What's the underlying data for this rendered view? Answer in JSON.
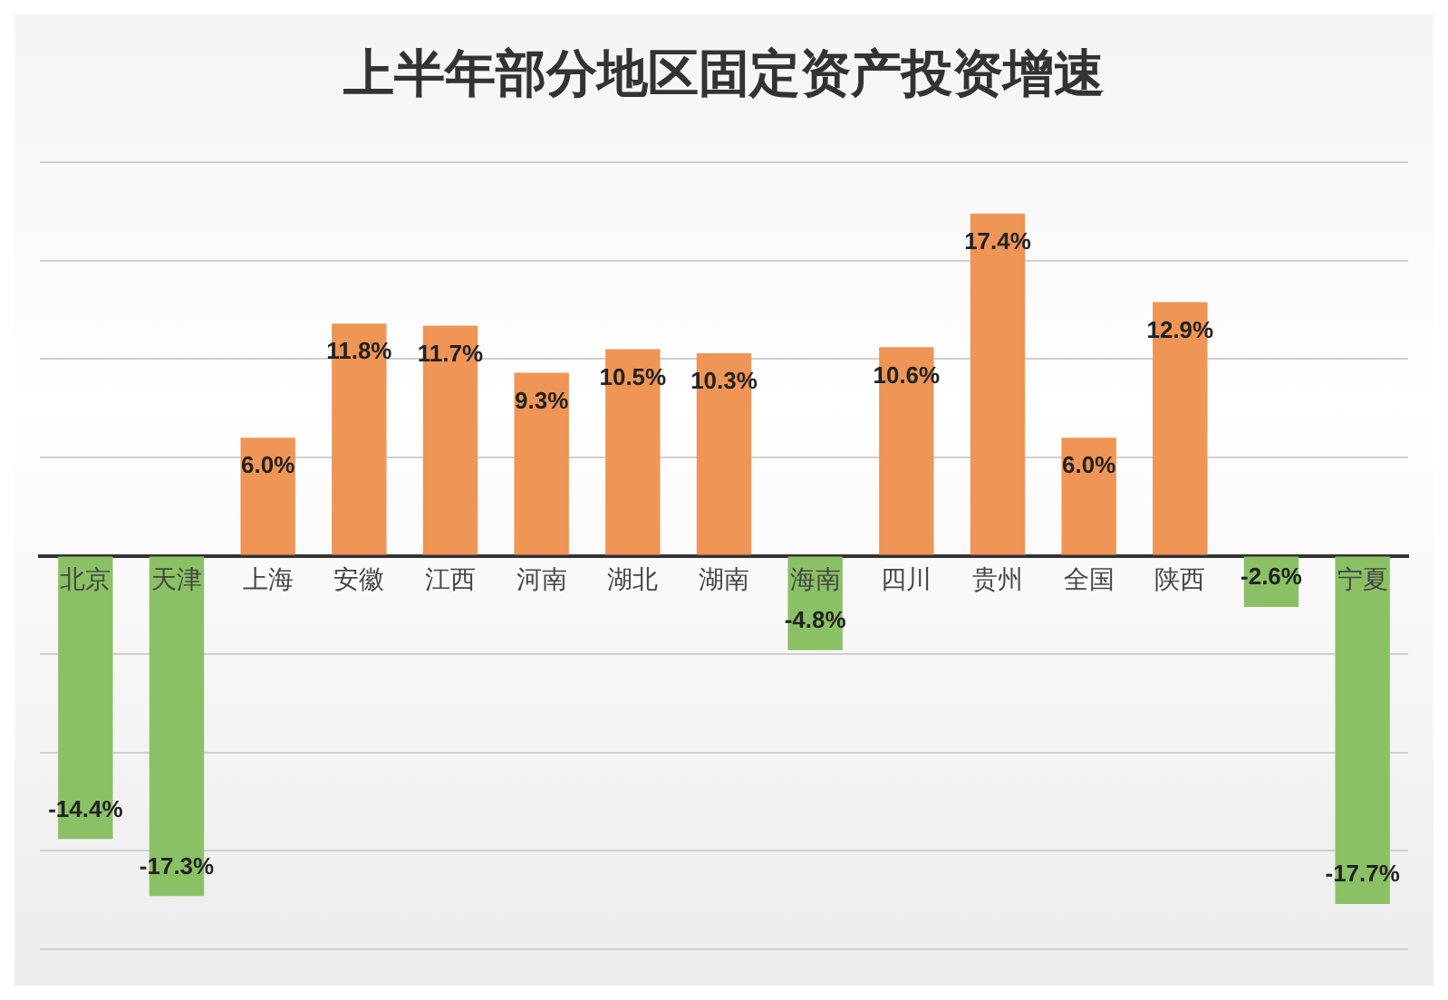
{
  "chart_data": {
    "type": "bar",
    "title": "上半年部分地区固定资产投资增速",
    "categories": [
      "北京",
      "天津",
      "上海",
      "安徽",
      "江西",
      "河南",
      "湖北",
      "湖南",
      "海南",
      "四川",
      "贵州",
      "全国",
      "陕西",
      null,
      "宁夏"
    ],
    "values": [
      -14.4,
      -17.3,
      6.0,
      11.8,
      11.7,
      9.3,
      10.5,
      10.3,
      -4.8,
      10.6,
      17.4,
      6.0,
      12.9,
      -2.6,
      -17.7
    ],
    "value_labels": [
      "-14.4%",
      "-17.3%",
      "6.0%",
      "11.8%",
      "11.7%",
      "9.3%",
      "10.5%",
      "10.3%",
      "-4.8%",
      "10.6%",
      "17.4%",
      "6.0%",
      "12.9%",
      "-2.6%",
      "-17.7%"
    ],
    "colors": [
      "#8bc165",
      "#8bc165",
      "#ef9556",
      "#ef9556",
      "#ef9556",
      "#ef9556",
      "#ef9556",
      "#ef9556",
      "#8bc165",
      "#ef9556",
      "#ef9556",
      "#ef9556",
      "#ef9556",
      "#8bc165",
      "#8bc165"
    ],
    "ylim": [
      -20,
      20
    ],
    "yticks": [
      {
        "value": -20,
        "label": null
      },
      {
        "value": -15,
        "label": null
      },
      {
        "value": -10,
        "label": null
      },
      {
        "value": -5,
        "label": null
      },
      {
        "value": 0,
        "label": null
      },
      {
        "value": 5,
        "label": null
      },
      {
        "value": 10,
        "label": null
      },
      {
        "value": 15,
        "label": null
      },
      {
        "value": 20,
        "label": null
      }
    ],
    "grid": "y",
    "tick_labels": "x",
    "legend": false
  }
}
